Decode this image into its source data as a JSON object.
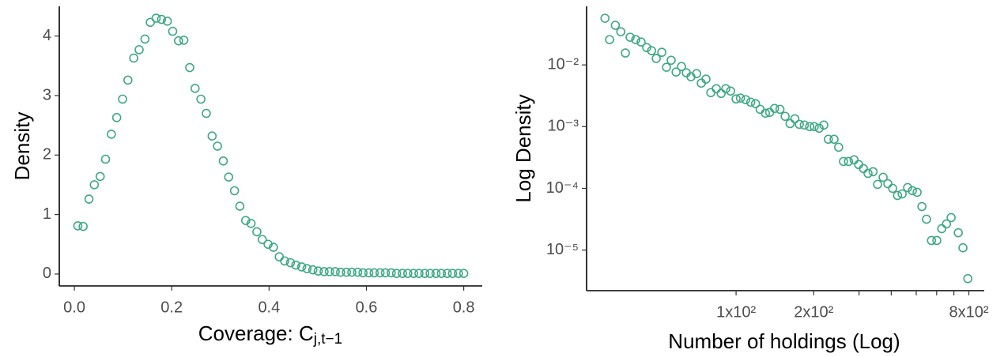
{
  "chart_data": [
    {
      "type": "scatter",
      "ylabel": "Density",
      "xlabel": "Coverage: C",
      "xlabel_subscript": "j,t−1",
      "color": "#3fa883",
      "xlim": [
        -0.031,
        0.838
      ],
      "ylim": [
        -0.2,
        4.5
      ],
      "xticks": [
        {
          "value": 0,
          "label": "0.0"
        },
        0.2,
        0.4,
        0.6,
        0.8
      ],
      "yticks": [
        0,
        1,
        2,
        3,
        4
      ],
      "x": [
        0.007,
        0.018,
        0.03,
        0.041,
        0.053,
        0.064,
        0.076,
        0.087,
        0.099,
        0.11,
        0.122,
        0.133,
        0.145,
        0.156,
        0.168,
        0.179,
        0.191,
        0.202,
        0.214,
        0.225,
        0.237,
        0.248,
        0.26,
        0.271,
        0.283,
        0.294,
        0.306,
        0.317,
        0.329,
        0.34,
        0.352,
        0.363,
        0.375,
        0.386,
        0.398,
        0.409,
        0.421,
        0.432,
        0.444,
        0.455,
        0.467,
        0.478,
        0.49,
        0.501,
        0.513,
        0.524,
        0.536,
        0.547,
        0.559,
        0.57,
        0.582,
        0.593,
        0.605,
        0.616,
        0.628,
        0.639,
        0.651,
        0.662,
        0.674,
        0.685,
        0.697,
        0.708,
        0.72,
        0.731,
        0.743,
        0.754,
        0.766,
        0.777,
        0.789,
        0.8
      ],
      "y": [
        0.81,
        0.8,
        1.26,
        1.5,
        1.64,
        1.93,
        2.35,
        2.63,
        2.94,
        3.26,
        3.63,
        3.77,
        3.95,
        4.23,
        4.3,
        4.28,
        4.25,
        4.08,
        3.92,
        3.93,
        3.47,
        3.12,
        2.94,
        2.7,
        2.32,
        2.15,
        1.9,
        1.63,
        1.4,
        1.14,
        0.9,
        0.85,
        0.71,
        0.58,
        0.5,
        0.45,
        0.29,
        0.22,
        0.19,
        0.15,
        0.12,
        0.09,
        0.07,
        0.05,
        0.04,
        0.04,
        0.04,
        0.03,
        0.03,
        0.03,
        0.03,
        0.02,
        0.02,
        0.02,
        0.02,
        0.02,
        0.02,
        0.01,
        0.01,
        0.01,
        0.01,
        0.01,
        0.01,
        0.01,
        0.01,
        0.01,
        0.01,
        0.01,
        0.01,
        0.01
      ]
    },
    {
      "type": "scatter",
      "ylabel": "Log Density",
      "xlabel": "Number of holdings (Log)",
      "color": "#3fa883",
      "xlog": true,
      "ylog": true,
      "xlim": [
        26.3,
        918
      ],
      "ylim": [
        2.2e-06,
        0.089
      ],
      "xticks": [
        {
          "value": 100,
          "label": "1x10²"
        },
        {
          "value": 200,
          "label": "2x10²"
        },
        {
          "value": 800,
          "label": "8x10²"
        }
      ],
      "xticks_minor": [
        300,
        400,
        500,
        600,
        700
      ],
      "yticks": [
        {
          "value": 0.01,
          "label": "10⁻²"
        },
        {
          "value": 0.001,
          "label": "10⁻³"
        },
        {
          "value": 0.0001,
          "label": "10⁻⁴"
        },
        {
          "value": 1e-05,
          "label": "10⁻⁵"
        }
      ],
      "x": [
        31.0,
        32.3,
        34.0,
        35.7,
        37.2,
        38.8,
        40.8,
        42.8,
        45.0,
        47.0,
        49.0,
        51.5,
        53.7,
        56.0,
        58.5,
        61.4,
        64.1,
        66.8,
        70.3,
        73.3,
        76.4,
        79.8,
        83.8,
        87.5,
        91.2,
        95.2,
        100,
        104,
        109,
        114,
        119,
        124,
        130,
        135,
        141,
        148,
        155,
        162,
        169,
        176,
        184,
        193,
        201,
        210,
        219,
        228,
        240,
        250,
        261,
        273,
        287,
        299,
        312,
        325,
        340,
        354,
        372,
        388,
        405,
        423,
        441,
        463,
        483,
        504,
        526,
        548,
        573,
        601,
        628,
        655,
        683,
        728,
        759,
        793
      ],
      "y": [
        0.057,
        0.0257,
        0.0438,
        0.0345,
        0.0156,
        0.0281,
        0.0257,
        0.0235,
        0.0191,
        0.017,
        0.0127,
        0.016,
        0.00916,
        0.0119,
        0.00767,
        0.00942,
        0.00745,
        0.00643,
        0.00723,
        0.00507,
        0.00588,
        0.00356,
        0.00412,
        0.00345,
        0.00412,
        0.00377,
        0.00281,
        0.0029,
        0.00273,
        0.00249,
        0.00235,
        0.00191,
        0.00165,
        0.0017,
        0.00197,
        0.00191,
        0.00147,
        0.00112,
        0.00134,
        0.00109,
        0.00106,
        0.001,
        0.001,
        0.000942,
        0.00106,
        0.000624,
        0.000624,
        0.000464,
        0.000273,
        0.000273,
        0.00029,
        0.000243,
        0.000209,
        0.000175,
        0.000186,
        0.000116,
        0.000151,
        0.000119,
        0.0001,
        7.67e-05,
        8.13e-05,
        0.000103,
        9.16e-05,
        8.63e-05,
        5.07e-05,
        3.16e-05,
        1.43e-05,
        1.43e-05,
        2.22e-05,
        2.65e-05,
        3.36e-05,
        1.91e-05,
        1.09e-05,
        3.45e-06
      ]
    }
  ]
}
